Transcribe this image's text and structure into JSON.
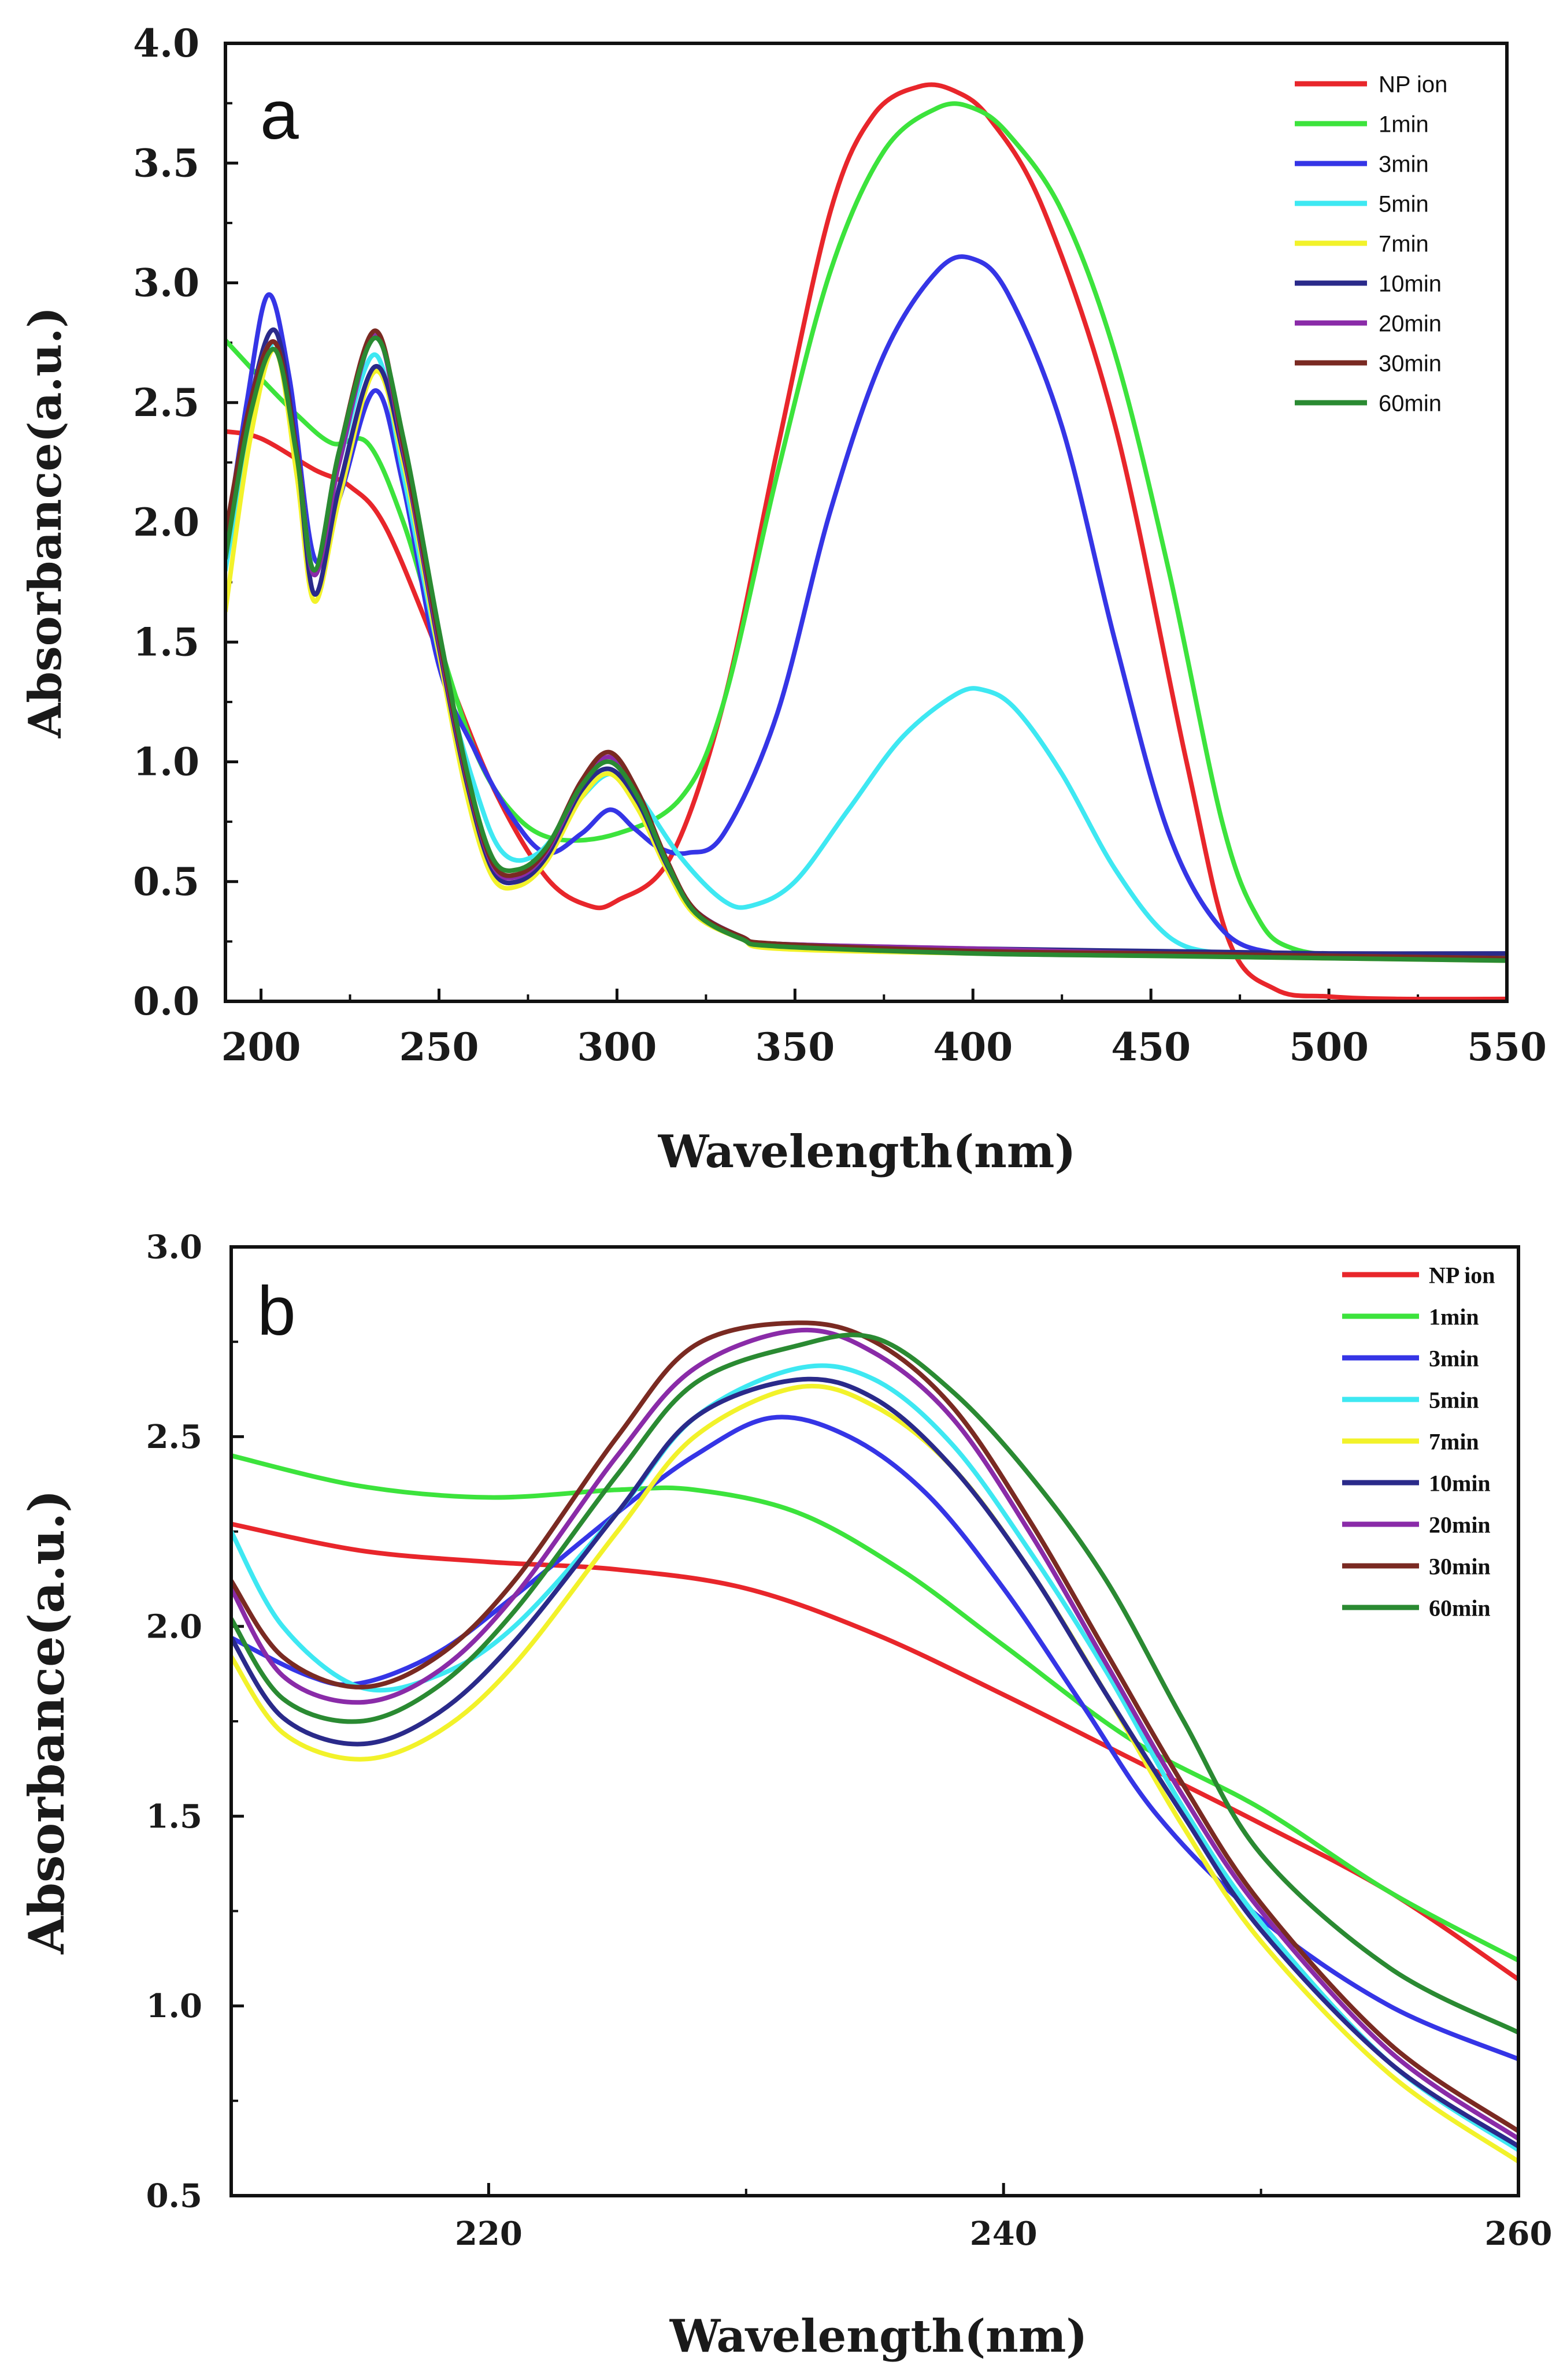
{
  "chart_data": [
    {
      "type": "line",
      "panel_label": "a",
      "xlabel": "Wavelength(nm)",
      "ylabel": "Absorbance(a.u.)",
      "xlim": [
        190,
        550
      ],
      "ylim": [
        0.0,
        4.0
      ],
      "xticks": [
        "200",
        "250",
        "300",
        "350",
        "400",
        "450",
        "500",
        "550"
      ],
      "xtick_values": [
        200,
        250,
        300,
        350,
        400,
        450,
        500,
        550
      ],
      "yticks": [
        "0.0",
        "0.5",
        "1.0",
        "1.5",
        "2.0",
        "2.5",
        "3.0",
        "3.5",
        "4.0"
      ],
      "ytick_values": [
        0.0,
        0.5,
        1.0,
        1.5,
        2.0,
        2.5,
        3.0,
        3.5,
        4.0
      ],
      "legend_position": "top-right",
      "series": [
        {
          "name": "NP ion",
          "color": "#e8262b",
          "x": [
            190,
            200,
            215,
            225,
            235,
            250,
            265,
            280,
            292,
            300,
            315,
            330,
            345,
            360,
            372,
            385,
            395,
            405,
            420,
            440,
            460,
            472,
            485,
            500,
            520,
            550
          ],
          "y": [
            2.38,
            2.35,
            2.22,
            2.15,
            1.98,
            1.45,
            0.9,
            0.52,
            0.4,
            0.42,
            0.6,
            1.25,
            2.3,
            3.3,
            3.7,
            3.82,
            3.8,
            3.68,
            3.3,
            2.4,
            1.0,
            0.25,
            0.05,
            0.02,
            0.01,
            0.01
          ]
        },
        {
          "name": "1min",
          "color": "#3ce33c",
          "x": [
            190,
            200,
            210,
            220,
            230,
            240,
            250,
            260,
            270,
            282,
            300,
            318,
            330,
            345,
            360,
            375,
            390,
            400,
            410,
            425,
            440,
            455,
            470,
            480,
            490,
            510,
            550
          ],
          "y": [
            2.76,
            2.6,
            2.45,
            2.33,
            2.33,
            2.0,
            1.5,
            1.05,
            0.8,
            0.68,
            0.7,
            0.85,
            1.25,
            2.2,
            3.05,
            3.55,
            3.73,
            3.73,
            3.62,
            3.3,
            2.7,
            1.8,
            0.75,
            0.35,
            0.22,
            0.19,
            0.18
          ]
        },
        {
          "name": "3min",
          "color": "#3535e6",
          "x": [
            190,
            196,
            202,
            208,
            215,
            222,
            232,
            240,
            250,
            260,
            270,
            280,
            290,
            298,
            305,
            312,
            320,
            330,
            345,
            360,
            375,
            390,
            400,
            410,
            425,
            440,
            455,
            470,
            485,
            500,
            550
          ],
          "y": [
            1.9,
            2.5,
            2.95,
            2.6,
            1.85,
            2.1,
            2.55,
            2.15,
            1.4,
            1.05,
            0.78,
            0.62,
            0.7,
            0.8,
            0.72,
            0.64,
            0.62,
            0.7,
            1.2,
            2.05,
            2.7,
            3.05,
            3.1,
            2.95,
            2.4,
            1.5,
            0.7,
            0.3,
            0.2,
            0.19,
            0.18
          ]
        },
        {
          "name": "5min",
          "color": "#3ee8f2",
          "x": [
            190,
            197,
            204,
            210,
            215,
            222,
            232,
            240,
            250,
            260,
            268,
            278,
            290,
            298,
            305,
            318,
            330,
            338,
            350,
            365,
            380,
            395,
            403,
            412,
            425,
            440,
            455,
            470,
            490,
            550
          ],
          "y": [
            1.8,
            2.4,
            2.75,
            2.3,
            1.8,
            2.25,
            2.7,
            2.2,
            1.45,
            0.9,
            0.62,
            0.62,
            0.85,
            0.95,
            0.88,
            0.6,
            0.42,
            0.4,
            0.5,
            0.8,
            1.1,
            1.28,
            1.3,
            1.22,
            0.95,
            0.55,
            0.27,
            0.2,
            0.19,
            0.19
          ]
        },
        {
          "name": "7min",
          "color": "#f2f22a",
          "x": [
            190,
            197,
            204,
            210,
            215,
            222,
            232,
            240,
            250,
            258,
            265,
            272,
            280,
            290,
            298,
            306,
            314,
            322,
            335,
            345,
            400,
            450,
            500,
            550
          ],
          "y": [
            1.63,
            2.35,
            2.72,
            2.2,
            1.67,
            2.1,
            2.63,
            2.25,
            1.45,
            0.85,
            0.52,
            0.48,
            0.58,
            0.85,
            0.95,
            0.8,
            0.55,
            0.36,
            0.26,
            0.22,
            0.2,
            0.19,
            0.18,
            0.17
          ]
        },
        {
          "name": "10min",
          "color": "#2a2a8a",
          "x": [
            190,
            197,
            204,
            210,
            215,
            222,
            232,
            240,
            250,
            258,
            265,
            272,
            280,
            290,
            298,
            306,
            314,
            322,
            335,
            345,
            400,
            450,
            500,
            550
          ],
          "y": [
            1.85,
            2.5,
            2.8,
            2.3,
            1.7,
            2.15,
            2.65,
            2.28,
            1.48,
            0.9,
            0.55,
            0.5,
            0.6,
            0.88,
            0.97,
            0.83,
            0.57,
            0.38,
            0.27,
            0.24,
            0.22,
            0.21,
            0.2,
            0.2
          ]
        },
        {
          "name": "20min",
          "color": "#8a2ba8",
          "x": [
            190,
            197,
            204,
            210,
            215,
            222,
            232,
            240,
            250,
            258,
            265,
            272,
            280,
            290,
            298,
            306,
            314,
            322,
            335,
            345,
            400,
            450,
            500,
            550
          ],
          "y": [
            1.9,
            2.5,
            2.75,
            2.3,
            1.78,
            2.25,
            2.78,
            2.3,
            1.5,
            0.92,
            0.57,
            0.52,
            0.62,
            0.9,
            1.02,
            0.86,
            0.58,
            0.38,
            0.27,
            0.24,
            0.22,
            0.2,
            0.19,
            0.18
          ]
        },
        {
          "name": "30min",
          "color": "#7a2a22",
          "x": [
            190,
            197,
            204,
            210,
            215,
            222,
            232,
            240,
            250,
            258,
            265,
            272,
            280,
            290,
            298,
            306,
            314,
            322,
            335,
            345,
            400,
            450,
            500,
            550
          ],
          "y": [
            1.95,
            2.5,
            2.75,
            2.3,
            1.8,
            2.3,
            2.8,
            2.32,
            1.52,
            0.93,
            0.58,
            0.53,
            0.63,
            0.92,
            1.04,
            0.87,
            0.59,
            0.38,
            0.27,
            0.24,
            0.21,
            0.2,
            0.19,
            0.18
          ]
        },
        {
          "name": "60min",
          "color": "#2a8a32",
          "x": [
            190,
            197,
            204,
            210,
            215,
            222,
            232,
            240,
            250,
            258,
            265,
            272,
            280,
            290,
            298,
            306,
            314,
            322,
            335,
            345,
            400,
            450,
            500,
            550
          ],
          "y": [
            1.85,
            2.45,
            2.72,
            2.28,
            1.8,
            2.3,
            2.77,
            2.35,
            1.55,
            0.95,
            0.6,
            0.55,
            0.64,
            0.9,
            1.0,
            0.85,
            0.58,
            0.37,
            0.26,
            0.23,
            0.2,
            0.19,
            0.18,
            0.17
          ]
        }
      ]
    },
    {
      "type": "line",
      "panel_label": "b",
      "xlabel": "Wavelength(nm)",
      "ylabel": "Absorbance(a.u.)",
      "xlim": [
        210,
        260
      ],
      "ylim": [
        0.5,
        3.0
      ],
      "xticks": [
        "220",
        "240",
        "260"
      ],
      "xtick_values": [
        220,
        240,
        260
      ],
      "yticks": [
        "0.5",
        "1.0",
        "1.5",
        "2.0",
        "2.5",
        "3.0"
      ],
      "ytick_values": [
        0.5,
        1.0,
        1.5,
        2.0,
        2.5,
        3.0
      ],
      "legend_position": "top-right",
      "series": [
        {
          "name": "NP ion",
          "color": "#e8262b",
          "x": [
            210,
            215,
            220,
            225,
            230,
            235,
            240,
            245,
            250,
            255,
            260
          ],
          "y": [
            2.27,
            2.2,
            2.17,
            2.15,
            2.1,
            1.98,
            1.82,
            1.65,
            1.48,
            1.3,
            1.07
          ]
        },
        {
          "name": "1min",
          "color": "#3ce33c",
          "x": [
            210,
            215,
            220,
            225,
            228,
            232,
            236,
            240,
            245,
            250,
            255,
            260
          ],
          "y": [
            2.45,
            2.37,
            2.34,
            2.36,
            2.36,
            2.3,
            2.15,
            1.95,
            1.7,
            1.52,
            1.3,
            1.12
          ]
        },
        {
          "name": "3min",
          "color": "#3535e6",
          "x": [
            210,
            213,
            215,
            218,
            221,
            225,
            228,
            231,
            234,
            237,
            240,
            243,
            246,
            250,
            255,
            260
          ],
          "y": [
            1.97,
            1.87,
            1.85,
            1.93,
            2.08,
            2.3,
            2.45,
            2.55,
            2.5,
            2.35,
            2.1,
            1.8,
            1.5,
            1.23,
            1.0,
            0.86
          ]
        },
        {
          "name": "5min",
          "color": "#3ee8f2",
          "x": [
            210,
            212,
            215,
            218,
            221,
            225,
            228,
            232,
            235,
            238,
            241,
            244,
            247,
            250,
            255,
            260
          ],
          "y": [
            2.25,
            2.0,
            1.84,
            1.87,
            2.0,
            2.3,
            2.55,
            2.68,
            2.65,
            2.48,
            2.2,
            1.88,
            1.52,
            1.22,
            0.85,
            0.62
          ]
        },
        {
          "name": "7min",
          "color": "#f2f22a",
          "x": [
            210,
            212,
            215,
            218,
            221,
            225,
            228,
            232,
            235,
            238,
            241,
            244,
            247,
            250,
            255,
            260
          ],
          "y": [
            1.92,
            1.72,
            1.65,
            1.72,
            1.9,
            2.25,
            2.5,
            2.63,
            2.58,
            2.42,
            2.15,
            1.82,
            1.47,
            1.17,
            0.82,
            0.59
          ]
        },
        {
          "name": "10min",
          "color": "#2a2a8a",
          "x": [
            210,
            212,
            215,
            218,
            221,
            225,
            228,
            232,
            235,
            238,
            241,
            244,
            247,
            250,
            255,
            260
          ],
          "y": [
            1.97,
            1.76,
            1.69,
            1.77,
            1.96,
            2.3,
            2.55,
            2.65,
            2.6,
            2.42,
            2.15,
            1.82,
            1.5,
            1.2,
            0.85,
            0.63
          ]
        },
        {
          "name": "20min",
          "color": "#8a2ba8",
          "x": [
            210,
            212,
            215,
            218,
            221,
            225,
            228,
            232,
            235,
            238,
            241,
            244,
            247,
            250,
            255,
            260
          ],
          "y": [
            2.1,
            1.87,
            1.8,
            1.88,
            2.08,
            2.45,
            2.68,
            2.78,
            2.72,
            2.55,
            2.25,
            1.9,
            1.55,
            1.25,
            0.88,
            0.65
          ]
        },
        {
          "name": "30min",
          "color": "#7a2a22",
          "x": [
            210,
            212,
            215,
            218,
            221,
            225,
            228,
            232,
            235,
            238,
            241,
            244,
            247,
            250,
            255,
            260
          ],
          "y": [
            2.12,
            1.92,
            1.84,
            1.92,
            2.12,
            2.5,
            2.74,
            2.8,
            2.75,
            2.58,
            2.28,
            1.93,
            1.58,
            1.27,
            0.9,
            0.67
          ]
        },
        {
          "name": "60min",
          "color": "#2a8a32",
          "x": [
            210,
            212,
            215,
            218,
            221,
            225,
            228,
            232,
            235,
            238,
            241,
            244,
            247,
            250,
            255,
            260
          ],
          "y": [
            2.02,
            1.81,
            1.75,
            1.84,
            2.04,
            2.4,
            2.64,
            2.74,
            2.76,
            2.62,
            2.4,
            2.12,
            1.75,
            1.4,
            1.1,
            0.93
          ]
        }
      ]
    }
  ]
}
